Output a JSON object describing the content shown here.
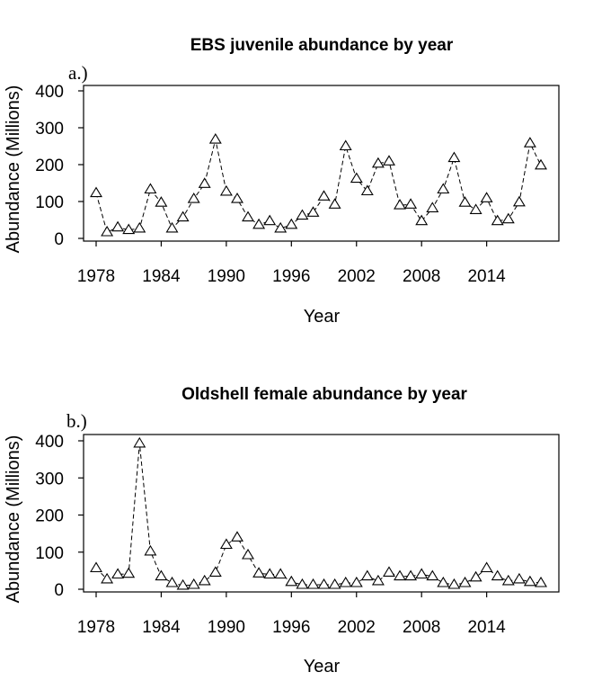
{
  "chart_data": [
    {
      "type": "line",
      "panel_label": "a.)",
      "title": "EBS juvenile abundance by year",
      "xlabel": "Year",
      "ylabel": "Abundance (Millions)",
      "xlim": [
        1977,
        2020
      ],
      "ylim": [
        0,
        400
      ],
      "xticks": [
        1978,
        1984,
        1990,
        1996,
        2002,
        2008,
        2014
      ],
      "yticks": [
        0,
        100,
        200,
        300,
        400
      ],
      "marker": "triangle-open",
      "x": [
        1978,
        1979,
        1980,
        1981,
        1982,
        1983,
        1984,
        1985,
        1986,
        1987,
        1988,
        1989,
        1990,
        1991,
        1992,
        1993,
        1994,
        1995,
        1996,
        1997,
        1998,
        1999,
        2000,
        2001,
        2002,
        2003,
        2004,
        2005,
        2006,
        2007,
        2008,
        2009,
        2010,
        2011,
        2012,
        2013,
        2014,
        2015,
        2016,
        2017,
        2018,
        2019
      ],
      "values": [
        123,
        17,
        30,
        23,
        27,
        133,
        97,
        27,
        57,
        107,
        148,
        268,
        127,
        107,
        57,
        37,
        47,
        27,
        37,
        62,
        70,
        114,
        92,
        250,
        162,
        128,
        203,
        209,
        90,
        92,
        47,
        82,
        133,
        218,
        97,
        77,
        109,
        47,
        52,
        98,
        258,
        198
      ]
    },
    {
      "type": "line",
      "panel_label": "b.)",
      "title": "Oldshell female abundance by year",
      "xlabel": "Year",
      "ylabel": "Abundance (Millions)",
      "xlim": [
        1977,
        2020
      ],
      "ylim": [
        0,
        400
      ],
      "xticks": [
        1978,
        1984,
        1990,
        1996,
        2002,
        2008,
        2014
      ],
      "yticks": [
        0,
        100,
        200,
        300,
        400
      ],
      "marker": "triangle-open",
      "x": [
        1978,
        1979,
        1980,
        1981,
        1982,
        1983,
        1984,
        1985,
        1986,
        1987,
        1988,
        1989,
        1990,
        1991,
        1992,
        1993,
        1994,
        1995,
        1996,
        1997,
        1998,
        1999,
        2000,
        2001,
        2002,
        2003,
        2004,
        2005,
        2006,
        2007,
        2008,
        2009,
        2010,
        2011,
        2012,
        2013,
        2014,
        2015,
        2016,
        2017,
        2018,
        2019
      ],
      "values": [
        57,
        27,
        40,
        42,
        393,
        102,
        35,
        17,
        10,
        12,
        22,
        45,
        120,
        140,
        92,
        43,
        40,
        40,
        20,
        12,
        12,
        12,
        12,
        17,
        17,
        35,
        22,
        45,
        35,
        35,
        40,
        35,
        17,
        12,
        17,
        32,
        57,
        35,
        22,
        27,
        20,
        17
      ]
    }
  ]
}
